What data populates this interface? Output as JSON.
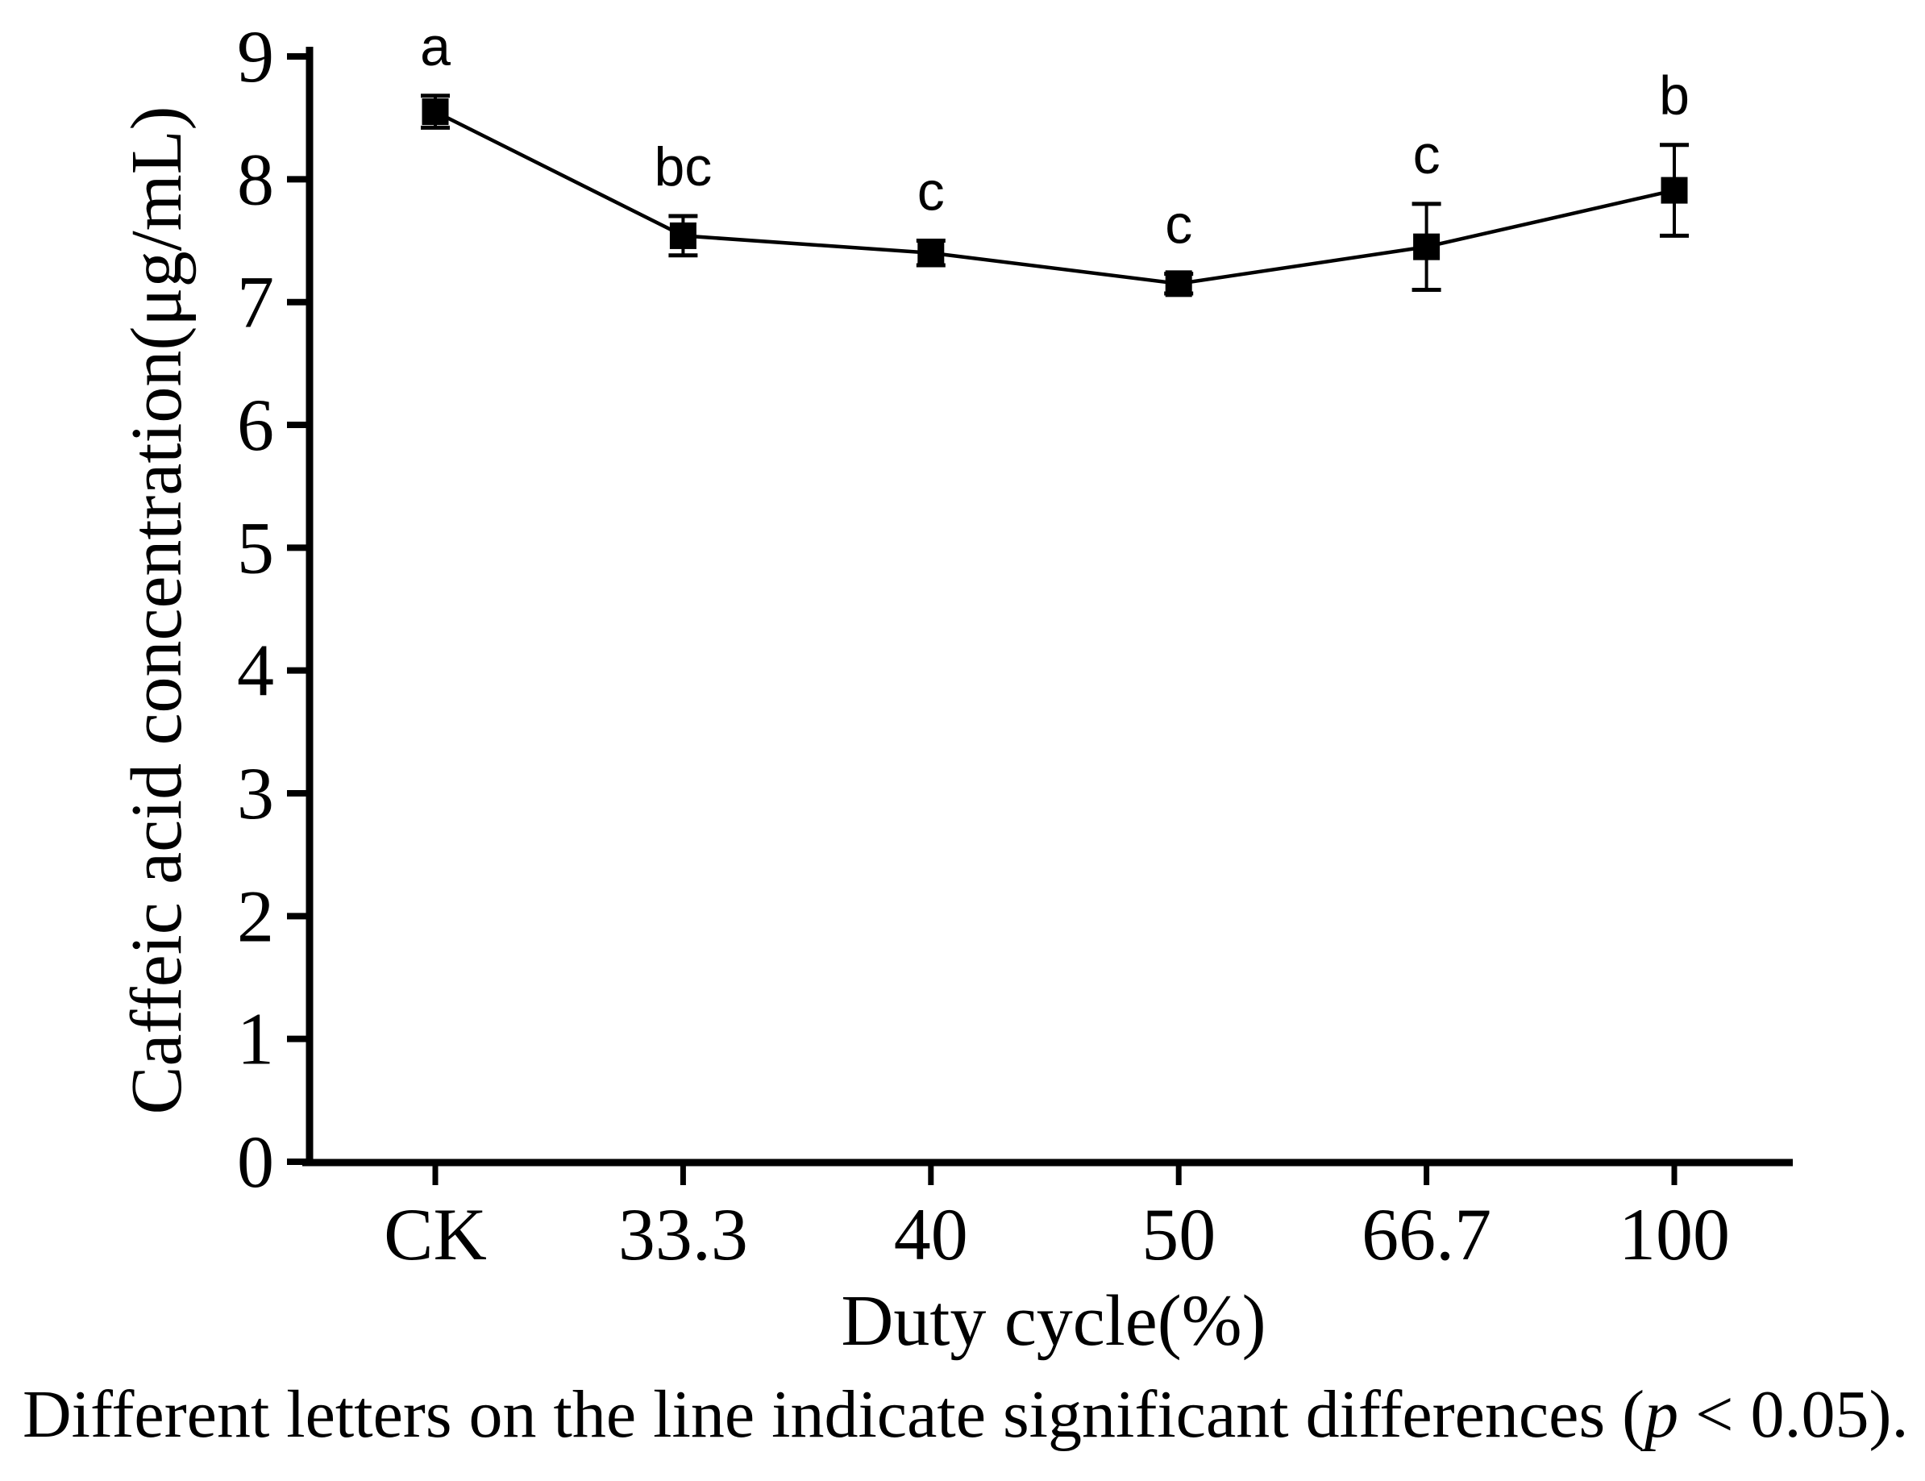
{
  "figure": {
    "caption_prefix": "Different letters on the line indicate significant differences (",
    "caption_italic_var": "p",
    "caption_suffix": " < 0.05)."
  },
  "chart_data": {
    "type": "line",
    "title": "",
    "xlabel": "Duty cycle(%)",
    "ylabel": "Caffeic acid concentration(μg/mL)",
    "categories": [
      "CK",
      "33.3",
      "40",
      "50",
      "66.7",
      "100"
    ],
    "series": [
      {
        "name": "Caffeic acid concentration",
        "values": [
          8.55,
          7.54,
          7.4,
          7.15,
          7.45,
          7.91
        ],
        "errors": [
          0.13,
          0.16,
          0.1,
          0.08,
          0.35,
          0.37
        ],
        "point_labels": [
          "a",
          "bc",
          "c",
          "c",
          "c",
          "b"
        ]
      }
    ],
    "ylim": [
      0,
      9
    ],
    "yticks": [
      0,
      1,
      2,
      3,
      4,
      5,
      6,
      7,
      8,
      9
    ],
    "grid": false,
    "legend": "none",
    "marker": "filled-square",
    "line_color": "#000000",
    "marker_color": "#000000",
    "error_bar_color": "#000000",
    "axis_color": "#000000"
  }
}
